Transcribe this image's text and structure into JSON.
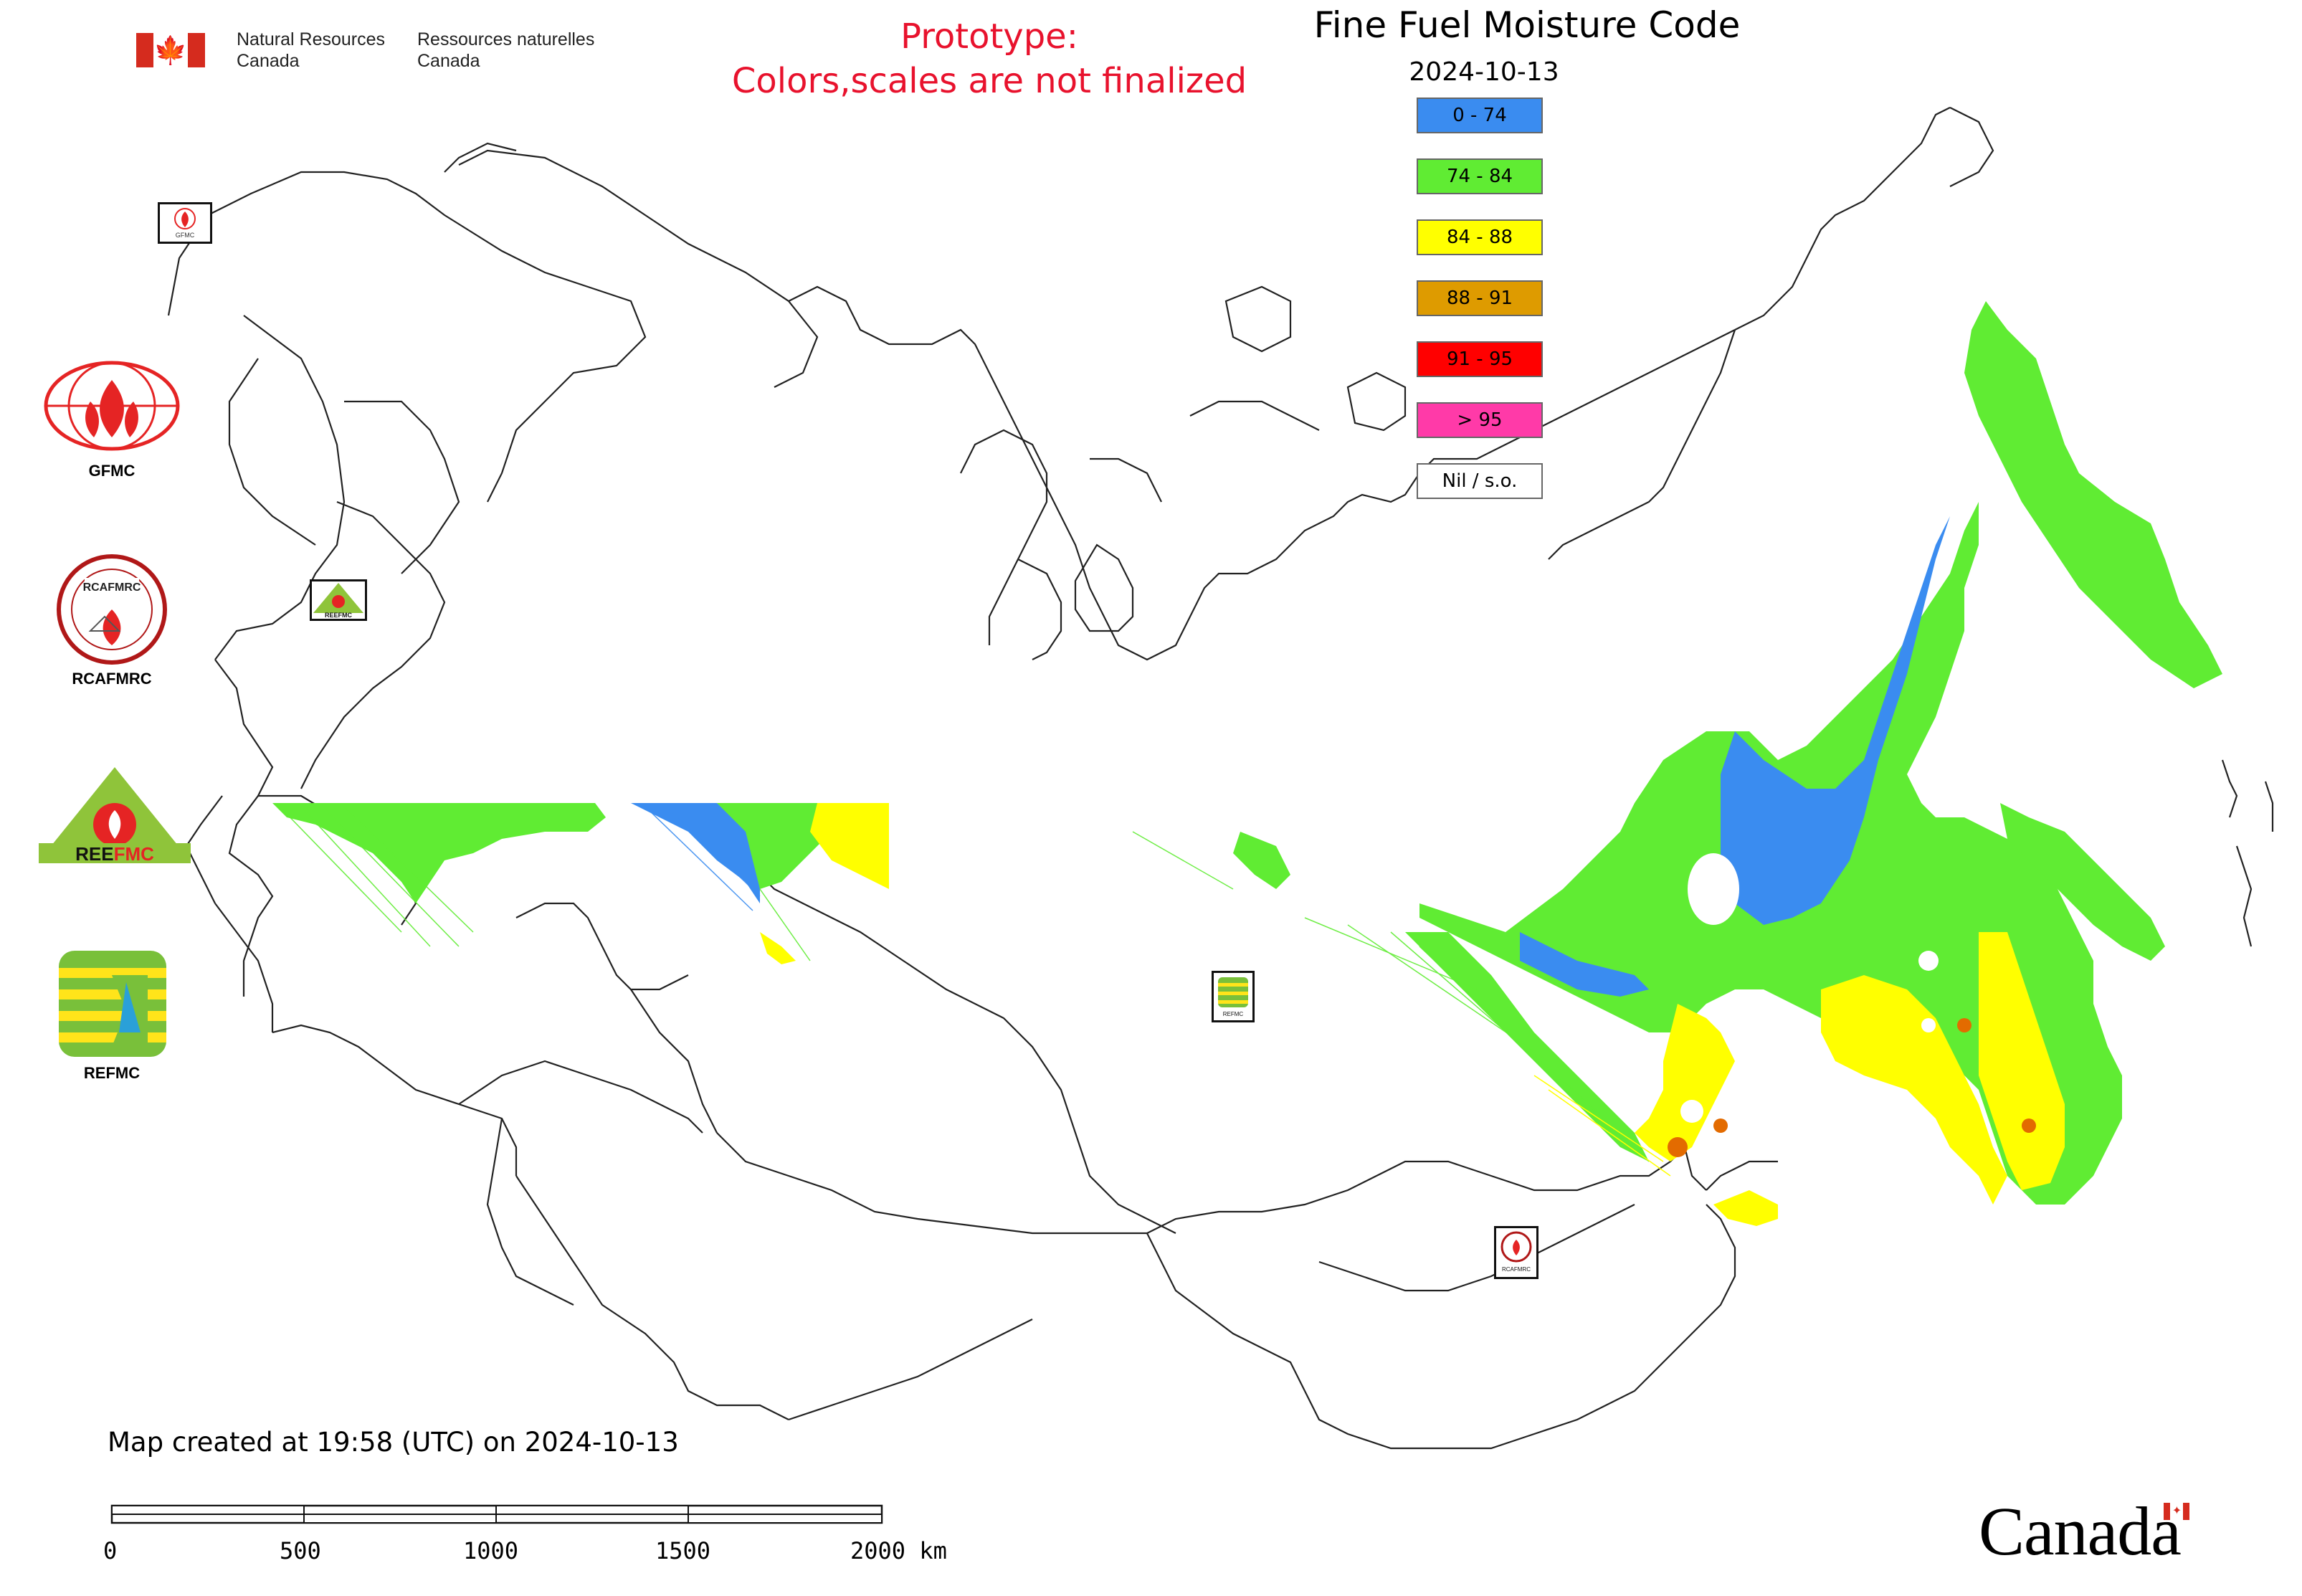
{
  "header": {
    "dept_en_line1": "Natural Resources",
    "dept_en_line2": "Canada",
    "dept_fr_line1": "Ressources naturelles",
    "dept_fr_line2": "Canada",
    "prototype_line1": "Prototype:",
    "prototype_line2": "Colors,scales are not finalized",
    "title": "Fine Fuel Moisture Code",
    "date": "2024-10-13"
  },
  "legend": {
    "items": [
      {
        "label": "0 - 74",
        "color": "#3a8cf0"
      },
      {
        "label": "74 - 84",
        "color": "#60ec33"
      },
      {
        "label": "84 - 88",
        "color": "#ffff00"
      },
      {
        "label": "88 - 91",
        "color": "#de9b00"
      },
      {
        "label": "91 - 95",
        "color": "#ff0000"
      },
      {
        "label": "> 95",
        "color": "#ff3aa8"
      },
      {
        "label": "Nil / s.o.",
        "color": "#ffffff"
      }
    ]
  },
  "logos": {
    "gfmc": "GFMC",
    "rcafmrc": "RCAFMRC",
    "refmc": "REFMC"
  },
  "map_markers": {
    "gfmc_small": "GFMC",
    "reefmc_small": "REEFMC",
    "refmc_small": "REFMC",
    "rcafmrc_small": "RCAFMRC"
  },
  "footer": {
    "created": "Map created at 19:58 (UTC) on 2024-10-13",
    "scale_ticks": [
      "0",
      "500",
      "1000",
      "1500",
      "2000 km"
    ],
    "wordmark": "Canada"
  },
  "colors": {
    "blue": "#3a8cf0",
    "green": "#60ec33",
    "yellow": "#ffff00",
    "orange": "#de9b00",
    "red": "#ff0000",
    "pink": "#ff3aa8",
    "flag_red": "#d52b1e",
    "prototype_red": "#e8122d"
  }
}
